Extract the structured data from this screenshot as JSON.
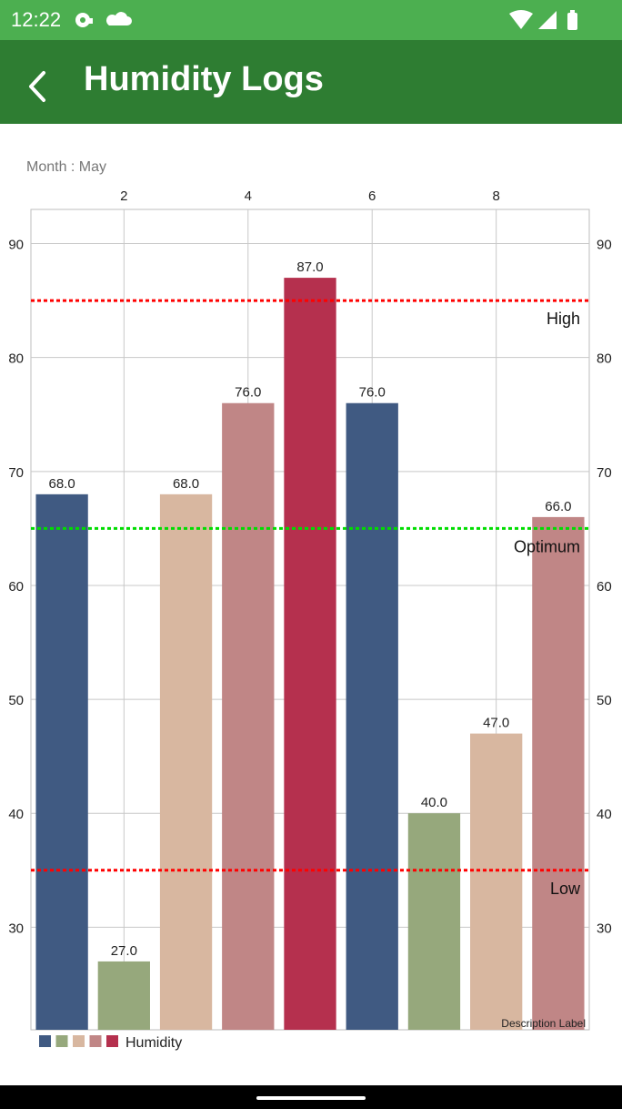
{
  "status_bar": {
    "time": "12:22",
    "left_icons": [
      "media-icon",
      "cloud-icon"
    ],
    "right_icons": [
      "wifi-icon",
      "signal-icon",
      "battery-icon"
    ]
  },
  "app_bar": {
    "title": "Humidity Logs",
    "back_icon": "chevron-left-icon"
  },
  "colors": {
    "status_bar": "#4caf50",
    "app_bar": "#2e7d32",
    "high_line": "#ff0000",
    "optimum_line": "#00dd00",
    "low_line": "#ff0000"
  },
  "chart_data": {
    "type": "bar",
    "month_label": "Month : May",
    "description_label": "Description Label",
    "x": [
      1,
      2,
      3,
      4,
      5,
      6,
      7,
      8,
      9
    ],
    "values": [
      68.0,
      27.0,
      68.0,
      76.0,
      87.0,
      76.0,
      40.0,
      47.0,
      66.0
    ],
    "value_labels": [
      "68.0",
      "27.0",
      "68.0",
      "76.0",
      "87.0",
      "76.0",
      "40.0",
      "47.0",
      "66.0"
    ],
    "bar_colors": [
      "#405a82",
      "#96a87c",
      "#d8b7a0",
      "#c08686",
      "#b5304e",
      "#405a82",
      "#96a87c",
      "#d8b7a0",
      "#c08686"
    ],
    "xlim": [
      0.5,
      9.5
    ],
    "ylim": [
      21,
      93
    ],
    "x_ticks": [
      2,
      4,
      6,
      8
    ],
    "y_ticks": [
      30,
      40,
      50,
      60,
      70,
      80,
      90
    ],
    "limit_lines": [
      {
        "label": "High",
        "value": 85,
        "color": "#ff0000"
      },
      {
        "label": "Optimum",
        "value": 65,
        "color": "#00dd00"
      },
      {
        "label": "Low",
        "value": 35,
        "color": "#ff0000"
      }
    ],
    "legend": {
      "label": "Humidity",
      "colors": [
        "#405a82",
        "#96a87c",
        "#d8b7a0",
        "#c08686",
        "#b5304e"
      ]
    },
    "grid": true
  }
}
